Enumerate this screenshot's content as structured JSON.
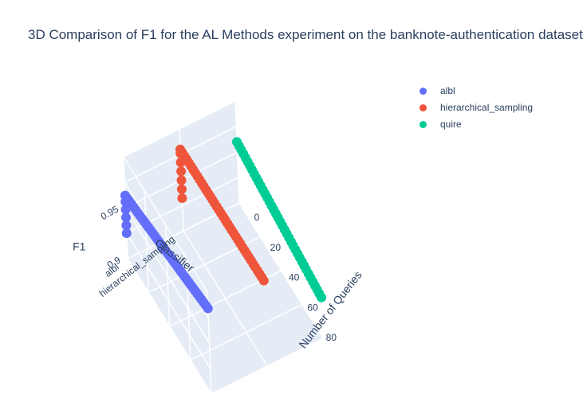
{
  "chart_data": {
    "type": "scatter",
    "title": "3D Comparison of F1 for the AL Methods experiment on the banknote-authentication dataset",
    "axes": {
      "x": {
        "label": "Number of Queries",
        "ticks": [
          "0",
          "20",
          "40",
          "60",
          "80"
        ],
        "range": [
          0,
          90
        ]
      },
      "y": {
        "label": "Classifier",
        "ticks": [
          "albl",
          "hierarchical_sampling"
        ]
      },
      "z": {
        "label": "F1",
        "ticks": [
          "0.9",
          "0.95"
        ],
        "range": [
          0.9,
          1.0
        ]
      }
    },
    "grid": true,
    "legend_position": "top-right",
    "series": [
      {
        "name": "albl",
        "color": "#636efa",
        "category": "albl",
        "segments": [
          {
            "from": 90,
            "to": 0,
            "f1_from": 0.984,
            "f1_to": 0.962,
            "count": 40
          },
          {
            "from": 0,
            "to": 0,
            "f1_from": 0.956,
            "f1_to": 0.925,
            "count": 5
          }
        ]
      },
      {
        "name": "hierarchical_sampling",
        "color": "#ef553b",
        "category": "hierarchical_sampling",
        "segments": [
          {
            "from": 90,
            "to": 0,
            "f1_from": 0.984,
            "f1_to": 0.98,
            "count": 40
          },
          {
            "from": 0,
            "to": 0,
            "f1_from": 0.976,
            "f1_to": 0.932,
            "count": 6
          }
        ]
      },
      {
        "name": "quire",
        "color": "#00cc96",
        "category": "quire",
        "segments": [
          {
            "from": 90,
            "to": 0,
            "f1_from": 0.94,
            "f1_to": 0.96,
            "count": 40
          }
        ]
      }
    ]
  }
}
